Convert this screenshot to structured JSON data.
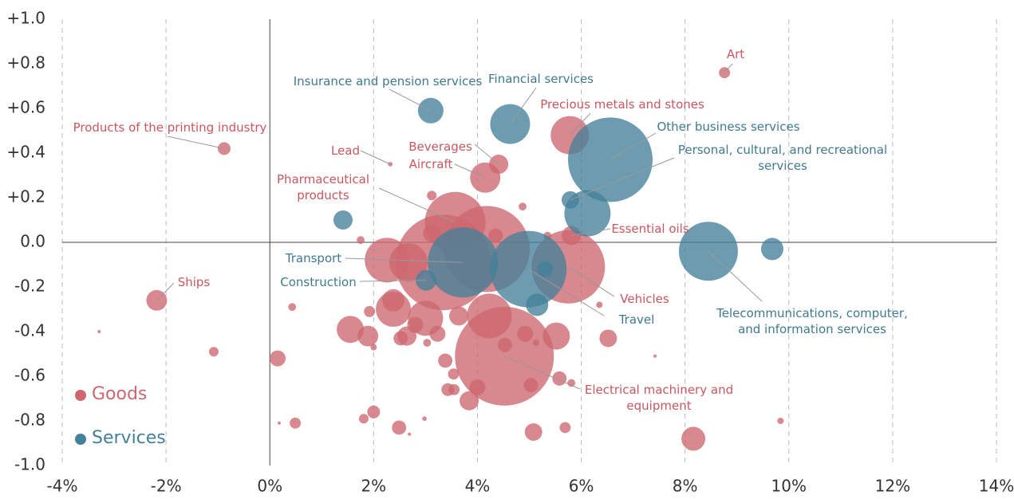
{
  "chart_data": {
    "type": "bubble",
    "xlim": [
      -4,
      14
    ],
    "ylim": [
      -1.0,
      1.0
    ],
    "xticks": [
      {
        "value": -4,
        "label": "-4%"
      },
      {
        "value": -2,
        "label": "-2%"
      },
      {
        "value": 0,
        "label": "0%"
      },
      {
        "value": 2,
        "label": "2%"
      },
      {
        "value": 4,
        "label": "4%"
      },
      {
        "value": 6,
        "label": "6%"
      },
      {
        "value": 8,
        "label": "8%"
      },
      {
        "value": 10,
        "label": "10%"
      },
      {
        "value": 12,
        "label": "12%"
      },
      {
        "value": 14,
        "label": "14%"
      }
    ],
    "yticks": [
      {
        "value": 1.0,
        "label": "+1.0"
      },
      {
        "value": 0.8,
        "label": "+0.8"
      },
      {
        "value": 0.6,
        "label": "+0.6"
      },
      {
        "value": 0.4,
        "label": "+0.4"
      },
      {
        "value": 0.2,
        "label": "+0.2"
      },
      {
        "value": 0.0,
        "label": "0.0"
      },
      {
        "value": -0.2,
        "label": "-0.2"
      },
      {
        "value": -0.4,
        "label": "-0.4"
      },
      {
        "value": -0.6,
        "label": "-0.6"
      },
      {
        "value": -0.8,
        "label": "-0.8"
      },
      {
        "value": -1.0,
        "label": "-1.0"
      }
    ],
    "grid": true,
    "legend": "lower left",
    "series": [
      {
        "name": "Goods",
        "color": "#cd6770",
        "x": [
          8.76,
          -0.88,
          2.32,
          4.41,
          4.15,
          5.78,
          3.57,
          5.81,
          -2.18,
          5.75,
          4.52,
          4.18,
          3.34,
          -3.29,
          -1.08,
          0.15,
          0.43,
          0.18,
          0.49,
          1.75,
          1.55,
          1.89,
          1.92,
          2.0,
          1.81,
          2.0,
          2.26,
          2.67,
          2.38,
          2.38,
          2.52,
          2.64,
          2.8,
          3.0,
          3.03,
          3.12,
          3.12,
          2.49,
          2.69,
          2.98,
          3.38,
          3.43,
          3.54,
          3.55,
          3.64,
          3.84,
          4.0,
          4.23,
          4.35,
          4.87,
          4.92,
          5.03,
          5.08,
          5.13,
          5.35,
          5.52,
          5.58,
          5.69,
          5.81,
          6.35,
          6.52,
          7.42,
          8.16,
          9.84,
          4.53,
          3.23,
          4.16
        ],
        "y": [
          0.76,
          0.42,
          0.35,
          0.35,
          0.29,
          0.48,
          0.09,
          0.03,
          -0.26,
          -0.11,
          -0.51,
          -0.03,
          -0.09,
          -0.4,
          -0.49,
          -0.52,
          -0.29,
          -0.81,
          -0.81,
          0.01,
          -0.39,
          -0.42,
          -0.31,
          -0.47,
          -0.79,
          -0.76,
          -0.08,
          -0.09,
          -0.3,
          -0.26,
          -0.43,
          -0.42,
          -0.37,
          -0.34,
          -0.45,
          0.21,
          0.04,
          -0.83,
          -0.86,
          -0.79,
          -0.53,
          -0.66,
          -0.59,
          -0.66,
          -0.33,
          -0.71,
          -0.65,
          -0.33,
          0.03,
          0.16,
          -0.41,
          -0.64,
          -0.85,
          -0.45,
          0.03,
          -0.42,
          -0.61,
          -0.83,
          -0.63,
          -0.28,
          -0.43,
          -0.51,
          -0.88,
          -0.8,
          -0.46,
          -0.41,
          -0.17
        ],
        "size": [
          12,
          16,
          2,
          36,
          90,
          144,
          361,
          36,
          42,
          529,
          961,
          729,
          900,
          1,
          9,
          25,
          6,
          1,
          12,
          6,
          72,
          42,
          12,
          4,
          9,
          16,
          196,
          144,
          121,
          49,
          20,
          36,
          25,
          121,
          6,
          9,
          30,
          20,
          1,
          2,
          20,
          16,
          12,
          12,
          36,
          36,
          25,
          196,
          20,
          6,
          25,
          20,
          30,
          4,
          6,
          72,
          20,
          12,
          6,
          4,
          30,
          1,
          56,
          4,
          20,
          25,
          16
        ]
      },
      {
        "name": "Services",
        "color": "#44809a",
        "x": [
          3.1,
          4.63,
          6.56,
          5.79,
          8.45,
          3.72,
          3.01,
          4.98,
          6.12,
          9.68,
          1.41,
          5.15,
          5.3
        ],
        "y": [
          0.59,
          0.53,
          0.37,
          0.19,
          -0.04,
          -0.09,
          -0.17,
          -0.12,
          0.13,
          -0.03,
          0.1,
          -0.28,
          -0.12
        ],
        "size": [
          64,
          156,
          702,
          30,
          342,
          484,
          42,
          576,
          210,
          49,
          36,
          49,
          25
        ]
      }
    ],
    "annotations": [
      {
        "text": "Art"
      },
      {
        "text": "Insurance and pension services"
      },
      {
        "text": "Financial services"
      },
      {
        "text": "Precious metals and stones"
      },
      {
        "text": "Products of the printing industry"
      },
      {
        "text": "Other business services"
      },
      {
        "text": "Lead"
      },
      {
        "text": "Beverages"
      },
      {
        "text": "Aircraft"
      },
      {
        "text": "Personal, cultural, and recreational services"
      },
      {
        "text": "Pharmaceutical products"
      },
      {
        "text": "Essential oils"
      },
      {
        "text": "Transport"
      },
      {
        "text": "Construction"
      },
      {
        "text": "Ships"
      },
      {
        "text": "Vehicles"
      },
      {
        "text": "Travel"
      },
      {
        "text": "Telecommunications, computer, and information services"
      },
      {
        "text": "Electrical machinery and equipment"
      }
    ]
  }
}
